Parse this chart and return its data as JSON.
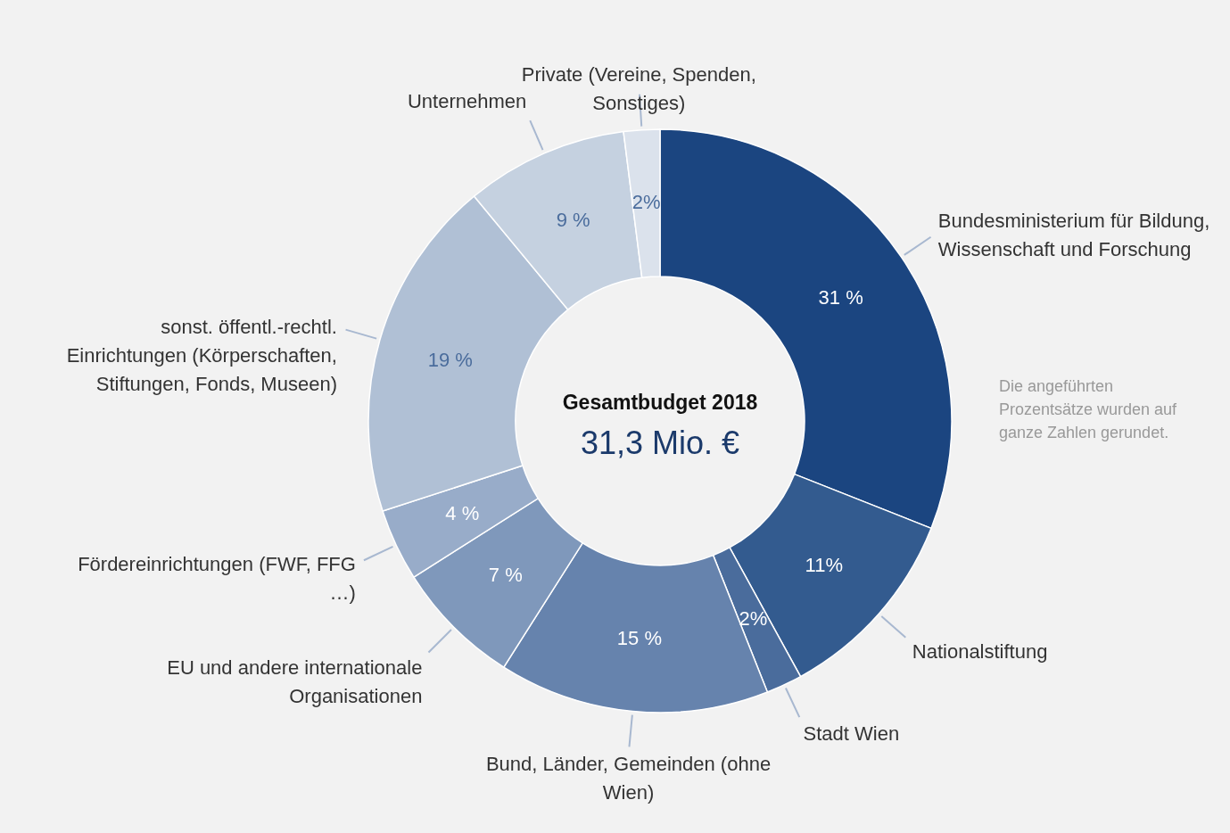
{
  "chart_data": {
    "type": "donut",
    "title": "Gesamtbudget 2018",
    "subtitle": "31,3 Mio. €",
    "categories": [
      "Bundesministerium für Bildung, Wissenschaft und Forschung",
      "Nationalstiftung",
      "Stadt Wien",
      "Bund, Länder, Gemeinden (ohne Wien)",
      "EU und andere internationale Organisationen",
      "Fördereinrichtungen (FWF, FFG …)",
      "sonst. öffentl.-rechtl. Einrichtungen (Körperschaften, Stiftungen, Fonds, Museen)",
      "Unternehmen",
      "Private (Vereine, Spenden, Sonstiges)"
    ],
    "values": [
      31,
      11,
      2,
      15,
      7,
      4,
      19,
      9,
      2
    ],
    "value_labels": [
      "31 %",
      "11%",
      "2%",
      "15 %",
      "7 %",
      "4 %",
      "19 %",
      "9 %",
      "2%"
    ],
    "colors": [
      "#1b4580",
      "#335b8f",
      "#4a6c9c",
      "#6683ad",
      "#7f98bb",
      "#98acc9",
      "#b0c0d5",
      "#c5d1e0",
      "#dbe2ec"
    ],
    "annotations": [
      "Die angeführten Prozentsätze wurden auf ganze Zahlen gerundet."
    ]
  }
}
